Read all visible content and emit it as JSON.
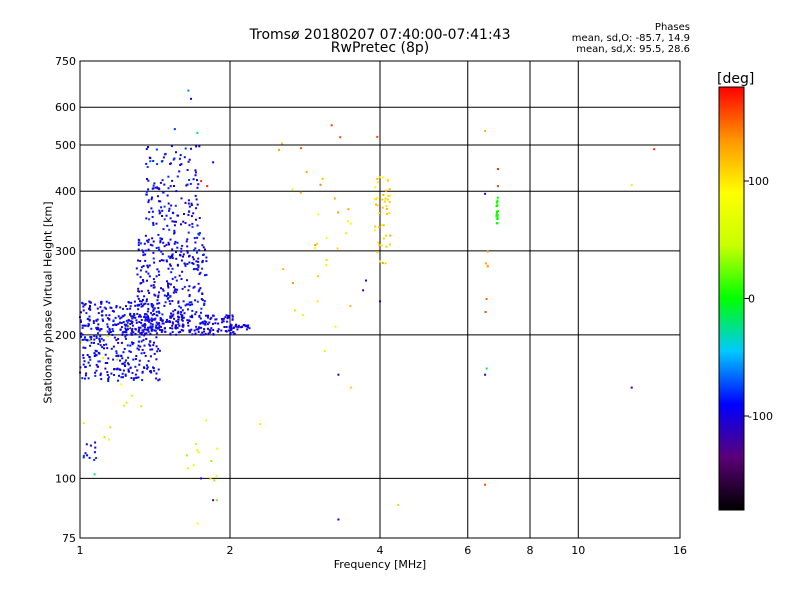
{
  "chart_data": {
    "type": "scatter",
    "title": "Tromsø 20180207 07:40:00-07:41:43",
    "subtitle": "RwPretec (8p)",
    "xlabel": "Frequency [MHz]",
    "ylabel": "Stationary phase Virtual Height [km]",
    "x_scale": "log",
    "y_scale": "log",
    "xlim": [
      1,
      16
    ],
    "ylim": [
      75,
      750
    ],
    "x_ticks": [
      1,
      2,
      4,
      6,
      8,
      10,
      16
    ],
    "y_ticks": [
      75,
      100,
      200,
      300,
      400,
      500,
      600,
      750
    ],
    "x_grid": [
      2,
      4,
      6,
      8,
      10
    ],
    "y_grid": [
      100,
      200,
      300,
      400,
      500,
      600
    ],
    "grid": true,
    "stats": {
      "title": "Phases",
      "o_line": "mean, sd,O: -85.7, 14.9",
      "x_line": "mean, sd,X:  95.5, 28.6"
    },
    "colorbar": {
      "label": "[deg]",
      "range": [
        -180,
        180
      ],
      "ticks": [
        100,
        0,
        -100
      ],
      "colors": [
        "#000000",
        "#5a0078",
        "#0000ff",
        "#00c8ff",
        "#00ff00",
        "#c8ff00",
        "#ffff00",
        "#ff9600",
        "#ff0000"
      ]
    },
    "series": [
      {
        "clusters": [
          {
            "x": [
              1.0,
              1.45
            ],
            "y": [
              160,
              235
            ],
            "n": 380,
            "phase": [
              -110,
              -80
            ]
          },
          {
            "x": [
              1.2,
              2.05
            ],
            "y": [
              200,
              220
            ],
            "n": 260,
            "phase": [
              -110,
              -85
            ]
          },
          {
            "x": [
              1.3,
              1.8
            ],
            "y": [
              220,
              320
            ],
            "n": 280,
            "phase": [
              -110,
              -80
            ]
          },
          {
            "x": [
              1.35,
              1.75
            ],
            "y": [
              320,
              500
            ],
            "n": 150,
            "phase": [
              -110,
              -75
            ]
          },
          {
            "x": [
              2.0,
              2.2
            ],
            "y": [
              205,
              210
            ],
            "n": 25,
            "phase": [
              -110,
              -90
            ]
          },
          {
            "x": [
              1.0,
              1.08
            ],
            "y": [
              108,
              120
            ],
            "n": 12,
            "phase": [
              -110,
              -70
            ]
          },
          {
            "x": [
              1.0,
              1.35
            ],
            "y": [
              110,
              230
            ],
            "n": 14,
            "phase": [
              10,
              110
            ]
          },
          {
            "x": [
              1.6,
              1.9
            ],
            "y": [
              80,
              140
            ],
            "n": 14,
            "phase": [
              20,
              120
            ]
          },
          {
            "x": [
              2.5,
              3.5
            ],
            "y": [
              200,
              520
            ],
            "n": 28,
            "phase": [
              60,
              160
            ]
          },
          {
            "x": [
              3.9,
              4.2
            ],
            "y": [
              280,
              430
            ],
            "n": 45,
            "phase": [
              90,
              130
            ]
          },
          {
            "x": [
              6.5,
              6.6
            ],
            "y": [
              210,
              300
            ],
            "n": 6,
            "phase": [
              120,
              160
            ]
          },
          {
            "x": [
              6.85,
              6.9
            ],
            "y": [
              340,
              390
            ],
            "n": 22,
            "phase": [
              -5,
              10
            ]
          }
        ],
        "points": [
          {
            "x": 1.65,
            "y": 650,
            "phase": -60
          },
          {
            "x": 1.67,
            "y": 625,
            "phase": -90
          },
          {
            "x": 1.55,
            "y": 540,
            "phase": -80
          },
          {
            "x": 1.72,
            "y": 530,
            "phase": -20
          },
          {
            "x": 3.2,
            "y": 550,
            "phase": 160
          },
          {
            "x": 3.95,
            "y": 520,
            "phase": 160
          },
          {
            "x": 6.5,
            "y": 535,
            "phase": 120
          },
          {
            "x": 6.9,
            "y": 445,
            "phase": 170
          },
          {
            "x": 6.9,
            "y": 410,
            "phase": 160
          },
          {
            "x": 6.5,
            "y": 395,
            "phase": -100
          },
          {
            "x": 14.2,
            "y": 490,
            "phase": 170
          },
          {
            "x": 12.8,
            "y": 412,
            "phase": 100
          },
          {
            "x": 6.5,
            "y": 165,
            "phase": -100
          },
          {
            "x": 6.55,
            "y": 170,
            "phase": -20
          },
          {
            "x": 12.8,
            "y": 155,
            "phase": -100
          },
          {
            "x": 3.3,
            "y": 165,
            "phase": -100
          },
          {
            "x": 3.1,
            "y": 185,
            "phase": 70
          },
          {
            "x": 3.5,
            "y": 155,
            "phase": 110
          },
          {
            "x": 2.3,
            "y": 130,
            "phase": 100
          },
          {
            "x": 1.15,
            "y": 128,
            "phase": 110
          },
          {
            "x": 1.12,
            "y": 122,
            "phase": 110
          },
          {
            "x": 1.07,
            "y": 102,
            "phase": -20
          },
          {
            "x": 6.5,
            "y": 97,
            "phase": 160
          },
          {
            "x": 3.3,
            "y": 82,
            "phase": -100
          },
          {
            "x": 4.35,
            "y": 88,
            "phase": 110
          },
          {
            "x": 1.85,
            "y": 90,
            "phase": -130
          },
          {
            "x": 1.75,
            "y": 100,
            "phase": -100
          },
          {
            "x": 4.0,
            "y": 235,
            "phase": -100
          },
          {
            "x": 3.7,
            "y": 248,
            "phase": -120
          },
          {
            "x": 3.75,
            "y": 260,
            "phase": -100
          },
          {
            "x": 3.0,
            "y": 235,
            "phase": 100
          },
          {
            "x": 2.7,
            "y": 225,
            "phase": 40
          },
          {
            "x": 2.8,
            "y": 220,
            "phase": 60
          },
          {
            "x": 1.85,
            "y": 460,
            "phase": -90
          },
          {
            "x": 1.75,
            "y": 420,
            "phase": 170
          },
          {
            "x": 1.8,
            "y": 410,
            "phase": 170
          }
        ]
      }
    ]
  }
}
